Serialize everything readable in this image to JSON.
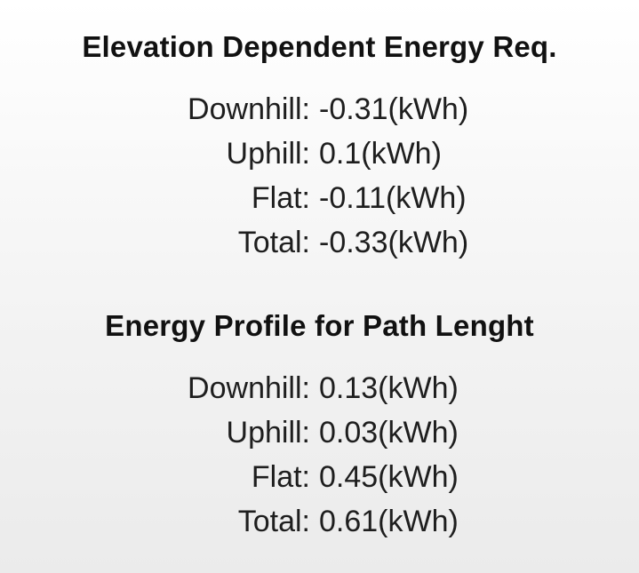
{
  "elevation": {
    "title": "Elevation Dependent Energy Req.",
    "rows": [
      {
        "label": "Downhill:",
        "value": "-0.31(kWh)"
      },
      {
        "label": "Uphill:",
        "value": "0.1(kWh)"
      },
      {
        "label": "Flat:",
        "value": "-0.11(kWh)"
      },
      {
        "label": "Total:",
        "value": "-0.33(kWh)"
      }
    ]
  },
  "path": {
    "title": "Energy Profile for Path Lenght",
    "rows": [
      {
        "label": "Downhill:",
        "value": "0.13(kWh)"
      },
      {
        "label": "Uphill:",
        "value": "0.03(kWh)"
      },
      {
        "label": "Flat:",
        "value": "0.45(kWh)"
      },
      {
        "label": "Total:",
        "value": "0.61(kWh)"
      }
    ]
  }
}
